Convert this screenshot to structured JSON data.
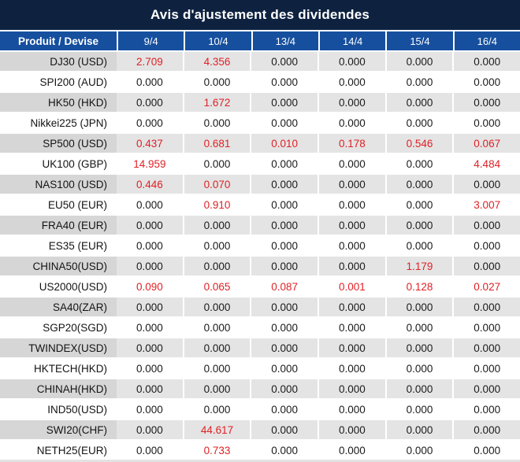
{
  "colors": {
    "title_bg": "#0e2240",
    "header_bg": "#164f9e",
    "row_gray_product": "#d6d6d6",
    "row_gray_value": "#e4e4e4",
    "text_dark": "#1a1a1a",
    "text_red": "#e02126",
    "text_white": "#ffffff",
    "bottom_edge": "#e3e3e3"
  },
  "chart_data": {
    "type": "table",
    "title": "Avis d'ajustement des dividendes",
    "columns": [
      "Produit / Devise",
      "9/4",
      "10/4",
      "13/4",
      "14/4",
      "15/4",
      "16/4"
    ],
    "rows": [
      {
        "product": "DJ30 (USD)",
        "values": [
          "2.709",
          "4.356",
          "0.000",
          "0.000",
          "0.000",
          "0.000"
        ],
        "red": [
          true,
          true,
          false,
          false,
          false,
          false
        ]
      },
      {
        "product": "SPI200 (AUD)",
        "values": [
          "0.000",
          "0.000",
          "0.000",
          "0.000",
          "0.000",
          "0.000"
        ],
        "red": [
          false,
          false,
          false,
          false,
          false,
          false
        ]
      },
      {
        "product": "HK50 (HKD)",
        "values": [
          "0.000",
          "1.672",
          "0.000",
          "0.000",
          "0.000",
          "0.000"
        ],
        "red": [
          false,
          true,
          false,
          false,
          false,
          false
        ]
      },
      {
        "product": "Nikkei225 (JPN)",
        "values": [
          "0.000",
          "0.000",
          "0.000",
          "0.000",
          "0.000",
          "0.000"
        ],
        "red": [
          false,
          false,
          false,
          false,
          false,
          false
        ]
      },
      {
        "product": "SP500 (USD)",
        "values": [
          "0.437",
          "0.681",
          "0.010",
          "0.178",
          "0.546",
          "0.067"
        ],
        "red": [
          true,
          true,
          true,
          true,
          true,
          true
        ]
      },
      {
        "product": "UK100 (GBP)",
        "values": [
          "14.959",
          "0.000",
          "0.000",
          "0.000",
          "0.000",
          "4.484"
        ],
        "red": [
          true,
          false,
          false,
          false,
          false,
          true
        ]
      },
      {
        "product": "NAS100 (USD)",
        "values": [
          "0.446",
          "0.070",
          "0.000",
          "0.000",
          "0.000",
          "0.000"
        ],
        "red": [
          true,
          true,
          false,
          false,
          false,
          false
        ]
      },
      {
        "product": "EU50 (EUR)",
        "values": [
          "0.000",
          "0.910",
          "0.000",
          "0.000",
          "0.000",
          "3.007"
        ],
        "red": [
          false,
          true,
          false,
          false,
          false,
          true
        ]
      },
      {
        "product": "FRA40 (EUR)",
        "values": [
          "0.000",
          "0.000",
          "0.000",
          "0.000",
          "0.000",
          "0.000"
        ],
        "red": [
          false,
          false,
          false,
          false,
          false,
          false
        ]
      },
      {
        "product": "ES35 (EUR)",
        "values": [
          "0.000",
          "0.000",
          "0.000",
          "0.000",
          "0.000",
          "0.000"
        ],
        "red": [
          false,
          false,
          false,
          false,
          false,
          false
        ]
      },
      {
        "product": "CHINA50(USD)",
        "values": [
          "0.000",
          "0.000",
          "0.000",
          "0.000",
          "1.179",
          "0.000"
        ],
        "red": [
          false,
          false,
          false,
          false,
          true,
          false
        ]
      },
      {
        "product": "US2000(USD)",
        "values": [
          "0.090",
          "0.065",
          "0.087",
          "0.001",
          "0.128",
          "0.027"
        ],
        "red": [
          true,
          true,
          true,
          true,
          true,
          true
        ]
      },
      {
        "product": "SA40(ZAR)",
        "values": [
          "0.000",
          "0.000",
          "0.000",
          "0.000",
          "0.000",
          "0.000"
        ],
        "red": [
          false,
          false,
          false,
          false,
          false,
          false
        ]
      },
      {
        "product": "SGP20(SGD)",
        "values": [
          "0.000",
          "0.000",
          "0.000",
          "0.000",
          "0.000",
          "0.000"
        ],
        "red": [
          false,
          false,
          false,
          false,
          false,
          false
        ]
      },
      {
        "product": "TWINDEX(USD)",
        "values": [
          "0.000",
          "0.000",
          "0.000",
          "0.000",
          "0.000",
          "0.000"
        ],
        "red": [
          false,
          false,
          false,
          false,
          false,
          false
        ]
      },
      {
        "product": "HKTECH(HKD)",
        "values": [
          "0.000",
          "0.000",
          "0.000",
          "0.000",
          "0.000",
          "0.000"
        ],
        "red": [
          false,
          false,
          false,
          false,
          false,
          false
        ]
      },
      {
        "product": "CHINAH(HKD)",
        "values": [
          "0.000",
          "0.000",
          "0.000",
          "0.000",
          "0.000",
          "0.000"
        ],
        "red": [
          false,
          false,
          false,
          false,
          false,
          false
        ]
      },
      {
        "product": "IND50(USD)",
        "values": [
          "0.000",
          "0.000",
          "0.000",
          "0.000",
          "0.000",
          "0.000"
        ],
        "red": [
          false,
          false,
          false,
          false,
          false,
          false
        ]
      },
      {
        "product": "SWI20(CHF)",
        "values": [
          "0.000",
          "44.617",
          "0.000",
          "0.000",
          "0.000",
          "0.000"
        ],
        "red": [
          false,
          true,
          false,
          false,
          false,
          false
        ]
      },
      {
        "product": "NETH25(EUR)",
        "values": [
          "0.000",
          "0.733",
          "0.000",
          "0.000",
          "0.000",
          "0.000"
        ],
        "red": [
          false,
          true,
          false,
          false,
          false,
          false
        ]
      }
    ]
  }
}
